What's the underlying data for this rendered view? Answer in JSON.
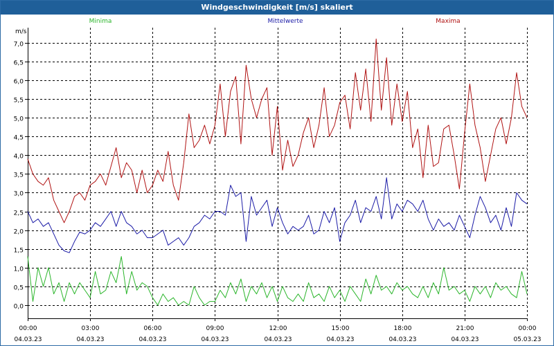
{
  "window": {
    "title": "Windgeschwindigkeit [m/s] skaliert"
  },
  "chart_data": {
    "type": "line",
    "ylabel": "m/s",
    "ylim": [
      -0.35,
      7.4
    ],
    "yticks": [
      0.0,
      0.5,
      1.0,
      1.5,
      2.0,
      2.5,
      3.0,
      3.5,
      4.0,
      4.5,
      5.0,
      5.5,
      6.0,
      6.5,
      7.0
    ],
    "ytick_labels": [
      "0,0",
      "0,5",
      "1,0",
      "1,5",
      "2,0",
      "2,5",
      "3,0",
      "3,5",
      "4,0",
      "4,5",
      "5,0",
      "5,5",
      "6,0",
      "6,5",
      "7,0"
    ],
    "xlim": [
      0,
      24
    ],
    "xticks": [
      0,
      3,
      6,
      9,
      12,
      15,
      18,
      21,
      24
    ],
    "xtick_time_labels": [
      "00:00",
      "03:00",
      "06:00",
      "09:00",
      "12:00",
      "15:00",
      "18:00",
      "21:00",
      "00:00"
    ],
    "xtick_date_labels": [
      "04.03.23",
      "04.03.23",
      "04.03.23",
      "04.03.23",
      "04.03.23",
      "04.03.23",
      "04.03.23",
      "04.03.23",
      "05.03.23"
    ],
    "grid": true,
    "legend": "top",
    "series": [
      {
        "name": "Minima",
        "color": "#2ab52a",
        "x": [
          0.0,
          0.25,
          0.5,
          0.75,
          1.0,
          1.25,
          1.5,
          1.75,
          2.0,
          2.25,
          2.5,
          2.75,
          3.0,
          3.25,
          3.5,
          3.75,
          4.0,
          4.25,
          4.5,
          4.75,
          5.0,
          5.25,
          5.5,
          5.75,
          6.0,
          6.25,
          6.5,
          6.75,
          7.0,
          7.25,
          7.5,
          7.75,
          8.0,
          8.25,
          8.5,
          8.75,
          9.0,
          9.25,
          9.5,
          9.75,
          10.0,
          10.25,
          10.5,
          10.75,
          11.0,
          11.25,
          11.5,
          11.75,
          12.0,
          12.25,
          12.5,
          12.75,
          13.0,
          13.25,
          13.5,
          13.75,
          14.0,
          14.25,
          14.5,
          14.75,
          15.0,
          15.25,
          15.5,
          15.75,
          16.0,
          16.25,
          16.5,
          16.75,
          17.0,
          17.25,
          17.5,
          17.75,
          18.0,
          18.25,
          18.5,
          18.75,
          19.0,
          19.25,
          19.5,
          19.75,
          20.0,
          20.25,
          20.5,
          20.75,
          21.0,
          21.25,
          21.5,
          21.75,
          22.0,
          22.25,
          22.5,
          22.75,
          23.0,
          23.25,
          23.5,
          23.75,
          24.0
        ],
        "values": [
          1.3,
          0.1,
          1.0,
          0.5,
          1.0,
          0.3,
          0.6,
          0.1,
          0.6,
          0.3,
          0.6,
          0.4,
          0.2,
          0.9,
          0.3,
          0.4,
          0.9,
          0.6,
          1.3,
          0.3,
          0.9,
          0.4,
          0.6,
          0.5,
          0.2,
          0.0,
          0.3,
          0.1,
          0.2,
          0.0,
          0.1,
          0.0,
          0.5,
          0.2,
          0.0,
          0.1,
          0.1,
          0.4,
          0.2,
          0.6,
          0.3,
          0.7,
          0.1,
          0.5,
          0.3,
          0.6,
          0.2,
          0.5,
          0.1,
          0.5,
          0.2,
          0.1,
          0.3,
          0.1,
          0.6,
          0.2,
          0.3,
          0.1,
          0.5,
          0.2,
          0.4,
          0.1,
          0.5,
          0.3,
          0.1,
          0.7,
          0.3,
          0.8,
          0.4,
          0.5,
          0.3,
          0.6,
          0.4,
          0.5,
          0.3,
          0.2,
          0.5,
          0.2,
          0.6,
          0.3,
          1.0,
          0.4,
          0.5,
          0.3,
          0.4,
          0.1,
          0.5,
          0.3,
          0.5,
          0.2,
          0.6,
          0.4,
          0.5,
          0.3,
          0.2,
          0.9,
          0.3
        ]
      },
      {
        "name": "Mittelwerte",
        "color": "#1a1aa6",
        "x": [
          0.0,
          0.25,
          0.5,
          0.75,
          1.0,
          1.25,
          1.5,
          1.75,
          2.0,
          2.25,
          2.5,
          2.75,
          3.0,
          3.25,
          3.5,
          3.75,
          4.0,
          4.25,
          4.5,
          4.75,
          5.0,
          5.25,
          5.5,
          5.75,
          6.0,
          6.25,
          6.5,
          6.75,
          7.0,
          7.25,
          7.5,
          7.75,
          8.0,
          8.25,
          8.5,
          8.75,
          9.0,
          9.25,
          9.5,
          9.75,
          10.0,
          10.25,
          10.5,
          10.75,
          11.0,
          11.25,
          11.5,
          11.75,
          12.0,
          12.25,
          12.5,
          12.75,
          13.0,
          13.25,
          13.5,
          13.75,
          14.0,
          14.25,
          14.5,
          14.75,
          15.0,
          15.25,
          15.5,
          15.75,
          16.0,
          16.25,
          16.5,
          16.75,
          17.0,
          17.25,
          17.5,
          17.75,
          18.0,
          18.25,
          18.5,
          18.75,
          19.0,
          19.25,
          19.5,
          19.75,
          20.0,
          20.25,
          20.5,
          20.75,
          21.0,
          21.25,
          21.5,
          21.75,
          22.0,
          22.25,
          22.5,
          22.75,
          23.0,
          23.25,
          23.5,
          23.75,
          24.0
        ],
        "values": [
          2.5,
          2.2,
          2.3,
          2.1,
          2.2,
          1.9,
          1.6,
          1.45,
          1.4,
          1.7,
          1.95,
          1.9,
          2.0,
          2.2,
          2.1,
          2.3,
          2.5,
          2.1,
          2.5,
          2.2,
          2.1,
          1.9,
          2.0,
          1.8,
          1.8,
          1.9,
          2.0,
          1.6,
          1.7,
          1.8,
          1.6,
          1.8,
          2.1,
          2.2,
          2.4,
          2.3,
          2.5,
          2.5,
          2.4,
          3.2,
          2.9,
          3.0,
          1.7,
          2.9,
          2.4,
          2.6,
          2.8,
          2.1,
          2.6,
          2.2,
          1.9,
          2.1,
          2.0,
          2.1,
          2.4,
          1.9,
          2.0,
          2.5,
          2.2,
          2.6,
          1.7,
          2.2,
          2.4,
          2.8,
          2.2,
          2.6,
          2.5,
          2.9,
          2.3,
          3.4,
          2.3,
          2.7,
          2.5,
          2.8,
          2.7,
          2.5,
          2.8,
          2.3,
          2.0,
          2.3,
          2.1,
          2.2,
          2.0,
          2.4,
          2.1,
          1.8,
          2.4,
          2.9,
          2.6,
          2.2,
          2.4,
          2.0,
          2.6,
          2.1,
          3.0,
          2.8,
          2.7
        ]
      },
      {
        "name": "Maxima",
        "color": "#b01212",
        "x": [
          0.0,
          0.25,
          0.5,
          0.75,
          1.0,
          1.25,
          1.5,
          1.75,
          2.0,
          2.25,
          2.5,
          2.75,
          3.0,
          3.25,
          3.5,
          3.75,
          4.0,
          4.25,
          4.5,
          4.75,
          5.0,
          5.25,
          5.5,
          5.75,
          6.0,
          6.25,
          6.5,
          6.75,
          7.0,
          7.25,
          7.5,
          7.75,
          8.0,
          8.25,
          8.5,
          8.75,
          9.0,
          9.25,
          9.5,
          9.75,
          10.0,
          10.25,
          10.5,
          10.75,
          11.0,
          11.25,
          11.5,
          11.75,
          12.0,
          12.25,
          12.5,
          12.75,
          13.0,
          13.25,
          13.5,
          13.75,
          14.0,
          14.25,
          14.5,
          14.75,
          15.0,
          15.25,
          15.5,
          15.75,
          16.0,
          16.25,
          16.5,
          16.75,
          17.0,
          17.25,
          17.5,
          17.75,
          18.0,
          18.25,
          18.5,
          18.75,
          19.0,
          19.25,
          19.5,
          19.75,
          20.0,
          20.25,
          20.5,
          20.75,
          21.0,
          21.25,
          21.5,
          21.75,
          22.0,
          22.25,
          22.5,
          22.75,
          23.0,
          23.25,
          23.5,
          23.75,
          24.0
        ],
        "values": [
          3.9,
          3.5,
          3.3,
          3.2,
          3.4,
          2.8,
          2.5,
          2.2,
          2.5,
          2.9,
          3.0,
          2.8,
          3.2,
          3.3,
          3.5,
          3.2,
          3.7,
          4.2,
          3.4,
          3.8,
          3.6,
          3.0,
          3.6,
          3.0,
          3.2,
          3.6,
          3.3,
          4.1,
          3.2,
          2.8,
          3.8,
          5.1,
          4.2,
          4.4,
          4.8,
          4.3,
          4.8,
          5.9,
          4.5,
          5.7,
          6.1,
          4.3,
          6.4,
          5.5,
          5.0,
          5.5,
          5.8,
          4.0,
          5.3,
          3.6,
          4.4,
          3.7,
          4.0,
          4.6,
          5.0,
          4.2,
          4.8,
          5.8,
          4.5,
          4.8,
          5.4,
          5.6,
          4.7,
          6.2,
          5.2,
          6.3,
          4.9,
          7.1,
          5.2,
          6.6,
          4.8,
          5.9,
          4.9,
          5.7,
          4.2,
          4.7,
          3.4,
          4.8,
          3.7,
          3.8,
          4.7,
          4.8,
          4.0,
          3.1,
          4.6,
          5.9,
          4.8,
          4.2,
          3.3,
          4.0,
          4.7,
          5.0,
          4.3,
          5.0,
          6.2,
          5.3,
          5.0
        ]
      }
    ]
  }
}
